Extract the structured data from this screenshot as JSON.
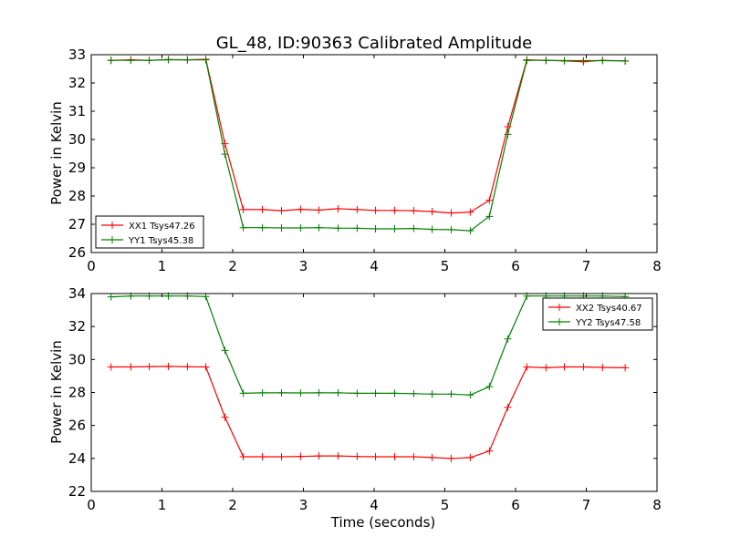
{
  "chart_data": [
    {
      "type": "line",
      "title": "GL_48, ID:90363 Calibrated Amplitude",
      "xlabel": "",
      "ylabel": "Power in Kelvin",
      "xlim": [
        0,
        8
      ],
      "ylim": [
        26,
        33
      ],
      "xticks": [
        "0",
        "1",
        "2",
        "3",
        "4",
        "5",
        "6",
        "7",
        "8"
      ],
      "yticks": [
        "26",
        "27",
        "28",
        "29",
        "30",
        "31",
        "32",
        "33"
      ],
      "legend_position": "lower-left",
      "grid": false,
      "x": [
        0.28,
        0.56,
        0.82,
        1.09,
        1.36,
        1.62,
        1.89,
        2.15,
        2.42,
        2.69,
        2.96,
        3.22,
        3.49,
        3.76,
        4.02,
        4.29,
        4.56,
        4.82,
        5.09,
        5.36,
        5.63,
        5.89,
        6.16,
        6.43,
        6.69,
        6.96,
        7.23,
        7.55
      ],
      "series": [
        {
          "name": "XX1 Tsys47.26",
          "color": "#ff0000",
          "values": [
            32.8,
            32.82,
            32.8,
            32.83,
            32.82,
            32.84,
            29.85,
            27.52,
            27.52,
            27.48,
            27.53,
            27.5,
            27.55,
            27.52,
            27.49,
            27.49,
            27.48,
            27.45,
            27.4,
            27.43,
            27.85,
            30.45,
            32.82,
            32.8,
            32.78,
            32.75,
            32.8,
            32.78
          ]
        },
        {
          "name": "YY1 Tsys45.38",
          "color": "#008000",
          "values": [
            32.8,
            32.8,
            32.8,
            32.82,
            32.82,
            32.82,
            29.48,
            26.88,
            26.88,
            26.87,
            26.87,
            26.88,
            26.86,
            26.86,
            26.84,
            26.84,
            26.85,
            26.82,
            26.81,
            26.77,
            27.28,
            30.18,
            32.8,
            32.8,
            32.79,
            32.79,
            32.79,
            32.78
          ]
        }
      ]
    },
    {
      "type": "line",
      "title": "",
      "xlabel": "Time (seconds)",
      "ylabel": "Power in Kelvin",
      "xlim": [
        0,
        8
      ],
      "ylim": [
        22,
        34
      ],
      "xticks": [
        "0",
        "1",
        "2",
        "3",
        "4",
        "5",
        "6",
        "7",
        "8"
      ],
      "yticks": [
        "22",
        "24",
        "26",
        "28",
        "30",
        "32",
        "34"
      ],
      "legend_position": "upper-right",
      "grid": false,
      "x": [
        0.28,
        0.56,
        0.82,
        1.09,
        1.36,
        1.62,
        1.89,
        2.15,
        2.42,
        2.69,
        2.96,
        3.22,
        3.49,
        3.76,
        4.02,
        4.29,
        4.56,
        4.82,
        5.09,
        5.36,
        5.63,
        5.89,
        6.16,
        6.43,
        6.69,
        6.96,
        7.23,
        7.55
      ],
      "series": [
        {
          "name": "XX2 Tsys40.67",
          "color": "#ff0000",
          "values": [
            29.55,
            29.55,
            29.57,
            29.58,
            29.56,
            29.55,
            26.5,
            24.1,
            24.1,
            24.1,
            24.12,
            24.15,
            24.15,
            24.12,
            24.1,
            24.1,
            24.1,
            24.05,
            24.0,
            24.05,
            24.45,
            27.1,
            29.55,
            29.5,
            29.55,
            29.55,
            29.52,
            29.5
          ]
        },
        {
          "name": "YY2 Tsys47.58",
          "color": "#008000",
          "values": [
            33.8,
            33.85,
            33.85,
            33.85,
            33.85,
            33.82,
            30.55,
            27.95,
            27.98,
            27.98,
            27.97,
            27.98,
            27.98,
            27.95,
            27.95,
            27.95,
            27.93,
            27.9,
            27.9,
            27.85,
            28.35,
            31.25,
            33.85,
            33.85,
            33.85,
            33.85,
            33.85,
            33.82
          ]
        }
      ]
    }
  ]
}
